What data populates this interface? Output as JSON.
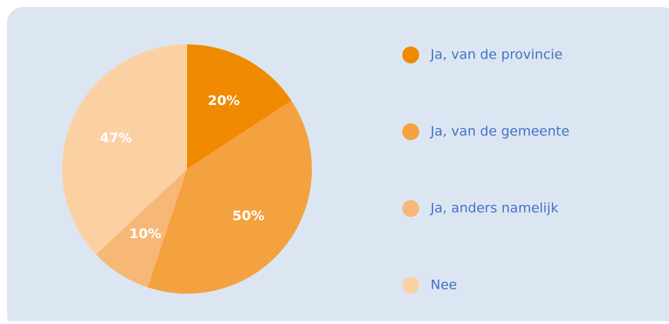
{
  "chart_data": {
    "type": "pie",
    "categories": [
      "Ja, van de provincie",
      "Ja, van de gemeente",
      "Ja, anders namelijk",
      "Nee"
    ],
    "values": [
      20,
      50,
      10,
      47
    ],
    "value_labels": [
      "20%",
      "50%",
      "10%",
      "47%"
    ],
    "colors": [
      "#f08a00",
      "#f4a23f",
      "#f7b877",
      "#fbd1a4"
    ],
    "legend": "right"
  }
}
